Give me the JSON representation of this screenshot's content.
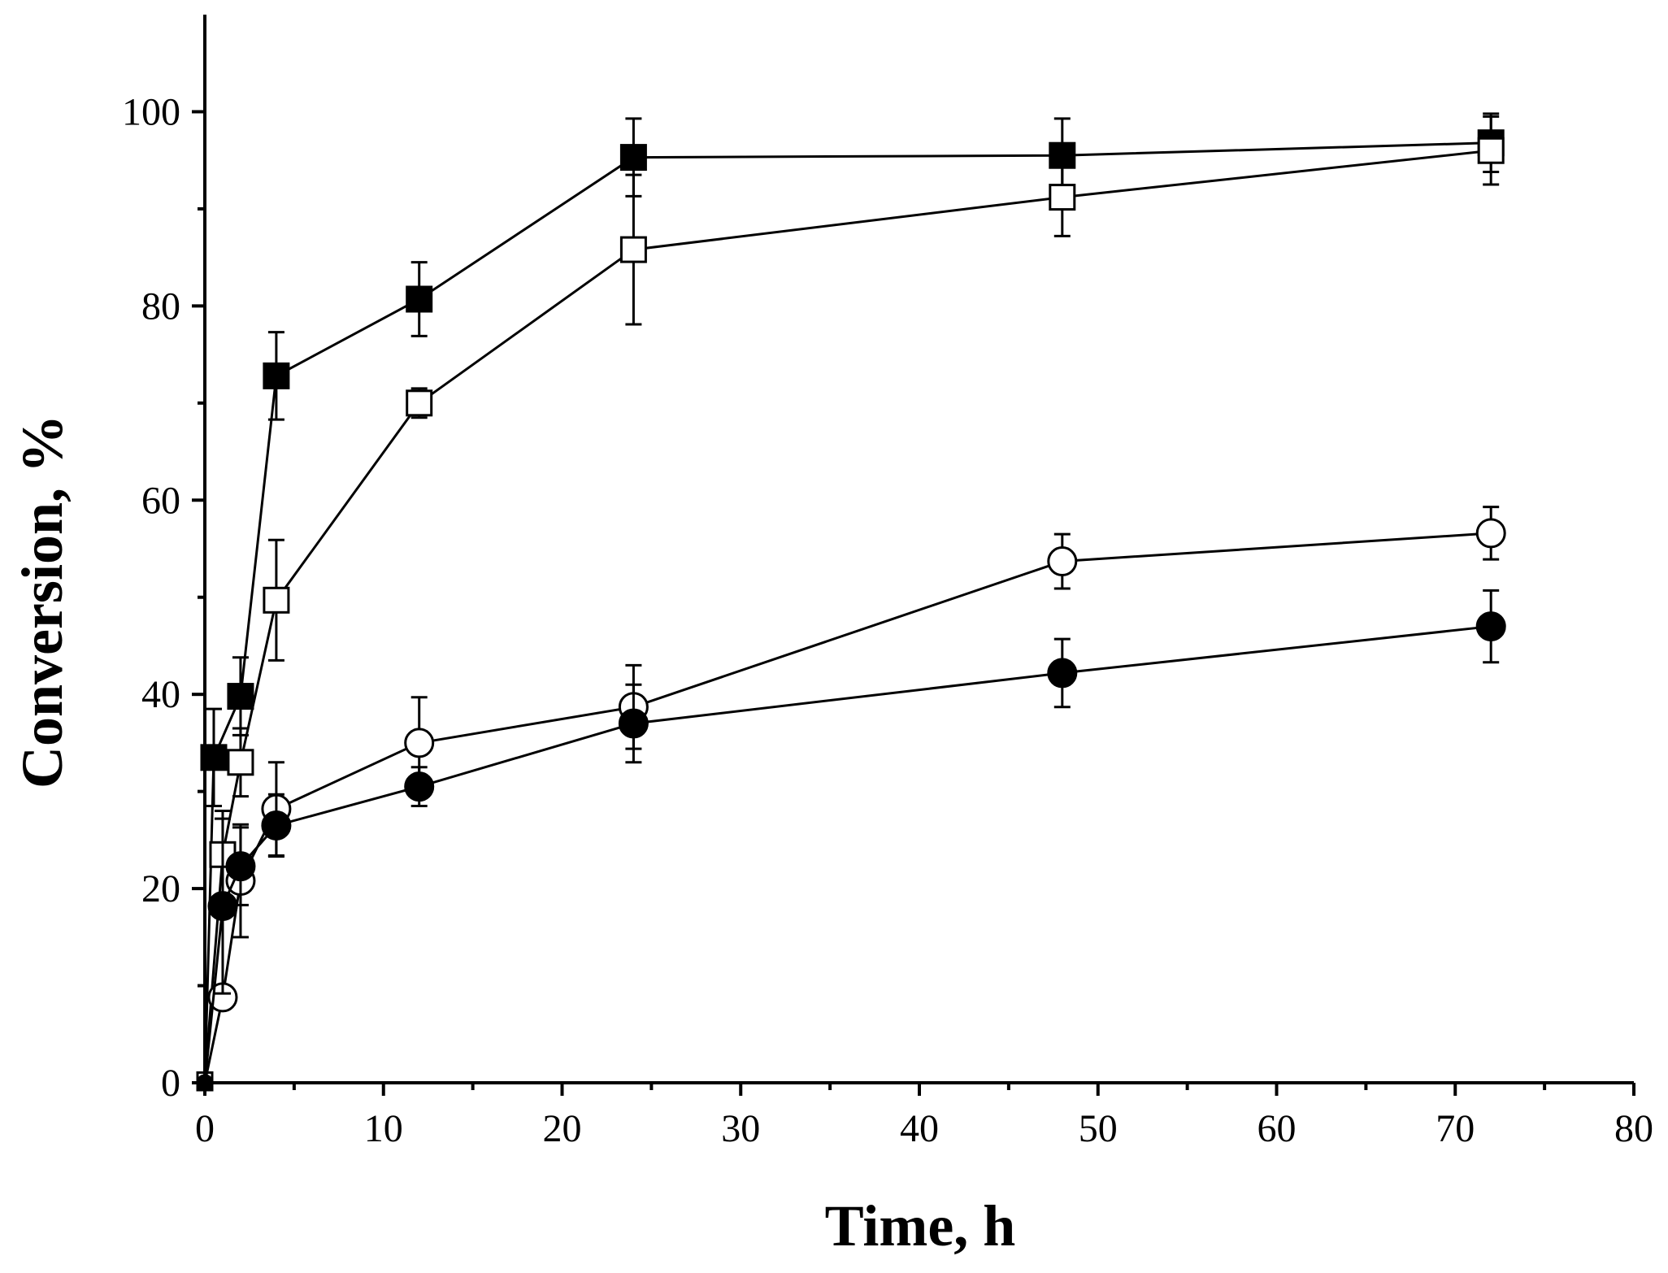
{
  "chart_data": {
    "type": "line",
    "title": "",
    "xlabel": "Time, h",
    "ylabel": "Conversion, %",
    "xlim": [
      0,
      80
    ],
    "ylim": [
      0,
      110
    ],
    "x_ticks": [
      0,
      10,
      20,
      30,
      40,
      50,
      60,
      70,
      80
    ],
    "y_ticks": [
      0,
      20,
      40,
      60,
      80,
      100
    ],
    "x_tick_labels": [
      "0",
      "10",
      "20",
      "30",
      "40",
      "50",
      "60",
      "70",
      "80"
    ],
    "y_tick_labels": [
      "0",
      "20",
      "40",
      "60",
      "80",
      "100"
    ],
    "grid": false,
    "legend": "none",
    "series": [
      {
        "name": "filled-square",
        "marker": "square",
        "filled": true,
        "x": [
          0,
          0.5,
          2,
          4,
          12,
          24,
          48,
          72
        ],
        "y": [
          0,
          33.5,
          39.8,
          72.8,
          80.7,
          95.3,
          95.5,
          96.8
        ],
        "err": [
          0,
          5,
          4,
          4.5,
          3.8,
          4,
          3.8,
          3
        ]
      },
      {
        "name": "open-square",
        "marker": "square",
        "filled": false,
        "x": [
          0,
          1,
          2,
          4,
          12,
          24,
          48,
          72
        ],
        "y": [
          0.3,
          23.5,
          33,
          49.7,
          70,
          85.8,
          91.2,
          96
        ],
        "err": [
          0,
          4.5,
          3.5,
          6.2,
          1.5,
          7.7,
          4,
          3.5
        ]
      },
      {
        "name": "open-circle",
        "marker": "circle",
        "filled": false,
        "x": [
          0,
          1,
          2,
          4,
          12,
          24,
          48,
          72
        ],
        "y": [
          0,
          8.8,
          20.8,
          28.2,
          35,
          38.7,
          53.7,
          56.6
        ],
        "err": [
          0,
          1,
          5.8,
          4.8,
          4.7,
          4.3,
          2.8,
          2.7
        ]
      },
      {
        "name": "filled-circle",
        "marker": "circle",
        "filled": true,
        "x": [
          0,
          1,
          2,
          4,
          12,
          24,
          48,
          72
        ],
        "y": [
          0,
          18.2,
          22.3,
          26.5,
          30.5,
          37,
          42.2,
          47
        ],
        "err": [
          0,
          9,
          4,
          3.2,
          2,
          4,
          3.5,
          3.7
        ]
      }
    ]
  }
}
